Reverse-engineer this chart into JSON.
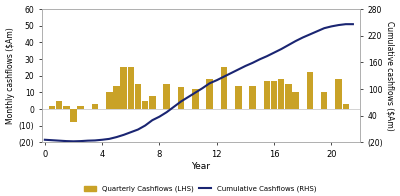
{
  "quarterly_x": [
    0.5,
    1.0,
    1.5,
    2.0,
    2.5,
    3.5,
    4.5,
    5.0,
    5.5,
    6.0,
    6.5,
    7.0,
    7.5,
    8.5,
    9.5,
    10.5,
    11.5,
    12.5,
    13.5,
    14.5,
    15.5,
    16.0,
    16.5,
    17.0,
    17.5,
    18.5,
    19.5,
    20.5,
    21.0
  ],
  "quarterly_heights": [
    2,
    5,
    2,
    -8,
    2,
    3,
    10,
    14,
    25,
    25,
    15,
    5,
    8,
    15,
    13,
    12,
    18,
    25,
    14,
    14,
    17,
    17,
    18,
    15,
    10,
    22,
    10,
    18,
    3
  ],
  "cum_x": [
    0,
    0.5,
    1.0,
    1.5,
    2.0,
    2.5,
    3.0,
    3.5,
    4.0,
    4.5,
    5.0,
    5.5,
    6.0,
    6.5,
    7.0,
    7.5,
    8.0,
    8.5,
    9.0,
    9.5,
    10.0,
    10.5,
    11.0,
    11.5,
    12.0,
    12.5,
    13.0,
    13.5,
    14.0,
    14.5,
    15.0,
    15.5,
    16.0,
    16.5,
    17.0,
    17.5,
    18.0,
    18.5,
    19.0,
    19.5,
    20.0,
    20.5,
    21.0,
    21.5
  ],
  "cum_y": [
    -14,
    -15,
    -16,
    -17,
    -17.5,
    -17,
    -16,
    -15.5,
    -14,
    -12,
    -8,
    -3,
    3,
    9,
    18,
    30,
    38,
    48,
    60,
    72,
    82,
    92,
    102,
    113,
    120,
    128,
    136,
    144,
    152,
    159,
    167,
    174,
    182,
    190,
    199,
    208,
    216,
    223,
    230,
    237,
    241,
    244,
    246,
    246
  ],
  "bar_color": "#C9A227",
  "line_color": "#1A2572",
  "lhs_ylim": [
    -20,
    60
  ],
  "rhs_ylim": [
    -20,
    280
  ],
  "lhs_yticks": [
    -20,
    -10,
    0,
    10,
    20,
    30,
    40,
    50,
    60
  ],
  "rhs_yticks": [
    -20,
    40,
    100,
    160,
    220,
    280
  ],
  "xlim": [
    -0.2,
    22
  ],
  "xticks": [
    0,
    4,
    8,
    12,
    16,
    20
  ],
  "xlabel": "Year",
  "ylabel_left": "Monthly cashflows ($Am)",
  "ylabel_right": "Cumulative cashflows ($Am)",
  "legend_bar_label": "Quarterly Cashflows (LHS)",
  "legend_line_label": "Cumulative Cashflows (RHS)",
  "background_color": "#FFFFFF",
  "bar_width": 0.45
}
